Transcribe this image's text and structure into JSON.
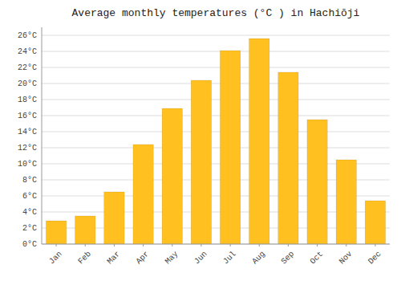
{
  "chart_data": {
    "type": "bar",
    "title": "Average monthly temperatures (°C ) in Hachiōji",
    "categories": [
      "Jan",
      "Feb",
      "Mar",
      "Apr",
      "May",
      "Jun",
      "Jul",
      "Aug",
      "Sep",
      "Oct",
      "Nov",
      "Dec"
    ],
    "values": [
      2.9,
      3.5,
      6.5,
      12.4,
      16.9,
      20.4,
      24.1,
      25.6,
      21.4,
      15.5,
      10.5,
      5.4
    ],
    "color": "#FFC020",
    "ylim": [
      0,
      27
    ],
    "yticks": [
      {
        "value": 0,
        "label": "0°C"
      },
      {
        "value": 2,
        "label": "2°C"
      },
      {
        "value": 4,
        "label": "4°C"
      },
      {
        "value": 6,
        "label": "6°C"
      },
      {
        "value": 8,
        "label": "8°C"
      },
      {
        "value": 10,
        "label": "10°C"
      },
      {
        "value": 12,
        "label": "12°C"
      },
      {
        "value": 14,
        "label": "14°C"
      },
      {
        "value": 16,
        "label": "16°C"
      },
      {
        "value": 18,
        "label": "18°C"
      },
      {
        "value": 20,
        "label": "20°C"
      },
      {
        "value": 22,
        "label": "22°C"
      },
      {
        "value": 24,
        "label": "24°C"
      },
      {
        "value": 26,
        "label": "26°C"
      }
    ],
    "grid": true
  }
}
